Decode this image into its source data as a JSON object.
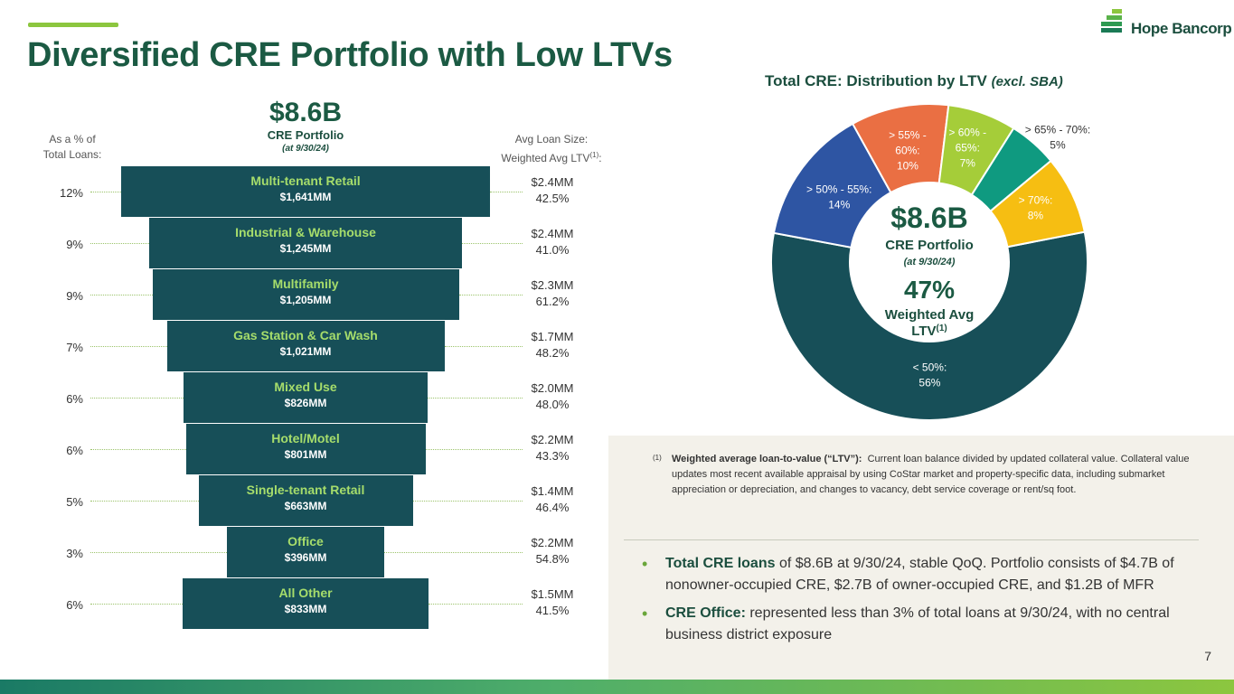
{
  "title": "Diversified CRE Portfolio with Low LTVs",
  "logo": {
    "name": "Hope Bancorp"
  },
  "colors": {
    "primary": "#1b5a43",
    "funnel_bar": "#174f58",
    "accent_green": "#8cc63f",
    "bar_label": "#a6dd6b"
  },
  "funnel": {
    "total": "$8.6B",
    "subtitle": "CRE Portfolio",
    "date": "(at 9/30/24)",
    "left_header": [
      "As a % of",
      "Total Loans:"
    ],
    "right_header_line1": "Avg Loan Size:",
    "right_header_line2": "Weighted Avg LTV",
    "right_header_sup": "(1)",
    "right_header_colon": ":",
    "rows": [
      {
        "pct": "12%",
        "name": "Multi-tenant Retail",
        "amount": "$1,641MM",
        "amount_mm": 1641,
        "avg_size": "$2.4MM",
        "ltv": "42.5%"
      },
      {
        "pct": "9%",
        "name": "Industrial & Warehouse",
        "amount": "$1,245MM",
        "amount_mm": 1245,
        "avg_size": "$2.4MM",
        "ltv": "41.0%"
      },
      {
        "pct": "9%",
        "name": "Multifamily",
        "amount": "$1,205MM",
        "amount_mm": 1205,
        "avg_size": "$2.3MM",
        "ltv": "61.2%"
      },
      {
        "pct": "7%",
        "name": "Gas Station & Car Wash",
        "amount": "$1,021MM",
        "amount_mm": 1021,
        "avg_size": "$1.7MM",
        "ltv": "48.2%"
      },
      {
        "pct": "6%",
        "name": "Mixed Use",
        "amount": "$826MM",
        "amount_mm": 826,
        "avg_size": "$2.0MM",
        "ltv": "48.0%"
      },
      {
        "pct": "6%",
        "name": "Hotel/Motel",
        "amount": "$801MM",
        "amount_mm": 801,
        "avg_size": "$2.2MM",
        "ltv": "43.3%"
      },
      {
        "pct": "5%",
        "name": "Single-tenant Retail",
        "amount": "$663MM",
        "amount_mm": 663,
        "avg_size": "$1.4MM",
        "ltv": "46.4%"
      },
      {
        "pct": "3%",
        "name": "Office",
        "amount": "$396MM",
        "amount_mm": 396,
        "avg_size": "$2.2MM",
        "ltv": "54.8%"
      },
      {
        "pct": "6%",
        "name": "All Other",
        "amount": "$833MM",
        "amount_mm": 833,
        "avg_size": "$1.5MM",
        "ltv": "41.5%"
      }
    ]
  },
  "chart_data": {
    "type": "pie",
    "title": "Total CRE: Distribution by LTV",
    "title_note": "(excl. SBA)",
    "categories": [
      "< 50%",
      "> 50% - 55%",
      "> 55% - 60%",
      "> 60% - 65%",
      "> 65% - 70%",
      "> 70%"
    ],
    "values": [
      56,
      14,
      10,
      7,
      5,
      8
    ],
    "colors": [
      "#174f58",
      "#2e55a3",
      "#ea6f43",
      "#a5cd39",
      "#0f9a80",
      "#f6be12"
    ],
    "label_lines": [
      [
        "< 50%:",
        "56%"
      ],
      [
        "> 50% - 55%:",
        "14%"
      ],
      [
        "> 55% -",
        "60%:",
        "10%"
      ],
      [
        "> 60% -",
        "65%:",
        "7%"
      ],
      [
        "> 65% - 70%:",
        "5%"
      ],
      [
        "> 70%:",
        "8%"
      ]
    ],
    "center": {
      "total": "$8.6B",
      "subtitle": "CRE Portfolio",
      "date": "(at 9/30/24)",
      "ltv": "47%",
      "ltv_label1": "Weighted Avg",
      "ltv_label2": "LTV",
      "ltv_sup": "(1)"
    }
  },
  "footnote": {
    "ref": "(1)",
    "term": "Weighted average loan-to-value (“LTV”):",
    "text": "Current loan balance divided by updated collateral value. Collateral value updates most recent available appraisal by using CoStar market and property-specific data, including submarket appreciation or depreciation, and changes to vacancy, debt service coverage or rent/sq foot."
  },
  "bullets": [
    {
      "lead": "Total CRE loans",
      "text": " of $8.6B at 9/30/24, stable QoQ. Portfolio consists of $4.7B of nonowner-occupied CRE, $2.7B of owner-occupied CRE, and $1.2B of MFR"
    },
    {
      "lead": "CRE Office:",
      "text": " represented less than 3% of total loans at 9/30/24, with no central business district exposure"
    }
  ],
  "page_number": "7"
}
